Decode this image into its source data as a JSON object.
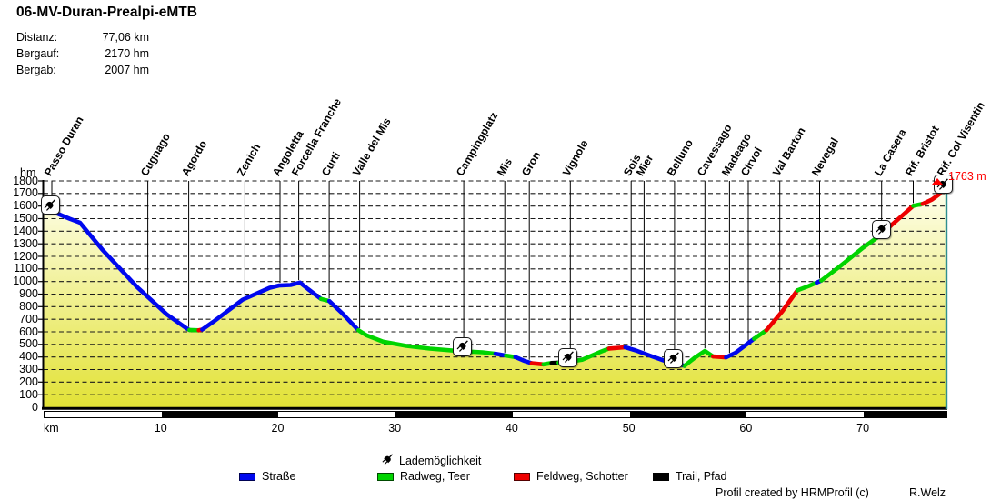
{
  "title": "06-MV-Duran-Prealpi-eMTB",
  "stats": [
    {
      "label": "Distanz:",
      "value": "77,06 km"
    },
    {
      "label": "Bergauf:",
      "value": "2170 hm"
    },
    {
      "label": "Bergab:",
      "value": "2007 hm"
    }
  ],
  "axes": {
    "y_unit": "hm",
    "x_unit": "km",
    "y_min": 0,
    "y_max": 1800,
    "y_step": 100,
    "x_max": 77.06,
    "x_ticks": [
      10,
      20,
      30,
      40,
      50,
      60,
      70
    ]
  },
  "peak": {
    "label": "1763 m",
    "elevation_m": 1763,
    "km": 77.06
  },
  "colors": {
    "road": "#0008ee",
    "bike": "#00d400",
    "gravel": "#ee0000",
    "trail": "#000000",
    "fill_top": "#fffff2",
    "fill_bottom": "#e2e236",
    "grid": "#1a1a1a",
    "right_border": "#2f8f8f",
    "peak": "#ff0000",
    "bar_light": "#ffffff",
    "bar_dark": "#000000"
  },
  "chargers": {
    "legend_label": "Lademöglichkeit",
    "positions_km": [
      0.55,
      35.8,
      44.8,
      53.8,
      71.6,
      76.85
    ]
  },
  "legend": [
    {
      "surface": "road",
      "label": "Straße"
    },
    {
      "surface": "bike",
      "label": "Radweg, Teer"
    },
    {
      "surface": "gravel",
      "label": "Feldweg, Schotter"
    },
    {
      "surface": "trail",
      "label": "Trail, Pfad"
    }
  ],
  "footer": {
    "credit": "Profil created by HRMProfil (c)",
    "author": "R.Welz"
  },
  "chart_data": {
    "type": "area",
    "title": "06-MV-Duran-Prealpi-eMTB",
    "xlabel": "km",
    "ylabel": "hm",
    "xlim": [
      0,
      77.06
    ],
    "ylim": [
      0,
      1800
    ],
    "y_step": 100,
    "x_ticks": [
      10,
      20,
      30,
      40,
      50,
      60,
      70
    ],
    "grid": true,
    "surfaces": {
      "road": "Straße",
      "bike": "Radweg, Teer",
      "gravel": "Feldweg, Schotter",
      "trail": "Trail, Pfad"
    },
    "profile_points_km_m_surface": [
      [
        0,
        1600,
        null
      ],
      [
        0.8,
        1555,
        "road"
      ],
      [
        2.2,
        1500,
        "road"
      ],
      [
        3.1,
        1468,
        "road"
      ],
      [
        5,
        1255,
        "road"
      ],
      [
        8,
        955,
        "road"
      ],
      [
        10.5,
        740,
        "road"
      ],
      [
        12.2,
        628,
        "road"
      ],
      [
        12.45,
        615,
        "road"
      ],
      [
        13.25,
        612,
        "bike"
      ],
      [
        13.55,
        618,
        "gravel"
      ],
      [
        14.5,
        680,
        "road"
      ],
      [
        17,
        855,
        "road"
      ],
      [
        19.3,
        950,
        "road"
      ],
      [
        20.1,
        968,
        "road"
      ],
      [
        21.1,
        972,
        "road"
      ],
      [
        21.9,
        992,
        "road"
      ],
      [
        22.6,
        940,
        "road"
      ],
      [
        23.7,
        862,
        "road"
      ],
      [
        24.4,
        845,
        "bike"
      ],
      [
        25.5,
        748,
        "road"
      ],
      [
        26.9,
        612,
        "road"
      ],
      [
        27.6,
        572,
        "bike"
      ],
      [
        29,
        522,
        "bike"
      ],
      [
        31,
        488,
        "bike"
      ],
      [
        33,
        466,
        "bike"
      ],
      [
        35.5,
        447,
        "bike"
      ],
      [
        37.5,
        437,
        "bike"
      ],
      [
        38.6,
        426,
        "bike"
      ],
      [
        39.5,
        411,
        "road"
      ],
      [
        40.3,
        399,
        "bike"
      ],
      [
        41.1,
        368,
        "road"
      ],
      [
        41.7,
        350,
        "road"
      ],
      [
        42.7,
        341,
        "gravel"
      ],
      [
        43.4,
        352,
        "bike"
      ],
      [
        44,
        355,
        "trail"
      ],
      [
        44.6,
        357,
        "bike"
      ],
      [
        46,
        378,
        "bike"
      ],
      [
        47.6,
        442,
        "bike"
      ],
      [
        48.3,
        467,
        "bike"
      ],
      [
        49.7,
        477,
        "gravel"
      ],
      [
        50.6,
        452,
        "road"
      ],
      [
        52,
        404,
        "road"
      ],
      [
        53.2,
        364,
        "road"
      ],
      [
        54.2,
        347,
        "bike"
      ],
      [
        54.75,
        329,
        "road"
      ],
      [
        55.6,
        392,
        "bike"
      ],
      [
        56.5,
        448,
        "bike"
      ],
      [
        57.2,
        404,
        "bike"
      ],
      [
        58.3,
        397,
        "gravel"
      ],
      [
        59.1,
        432,
        "road"
      ],
      [
        60.7,
        545,
        "road"
      ],
      [
        61.75,
        612,
        "bike"
      ],
      [
        63.1,
        762,
        "gravel"
      ],
      [
        64.4,
        930,
        "gravel"
      ],
      [
        65.4,
        965,
        "bike"
      ],
      [
        66.05,
        992,
        "bike"
      ],
      [
        66.45,
        1008,
        "road"
      ],
      [
        68,
        1118,
        "bike"
      ],
      [
        70,
        1268,
        "bike"
      ],
      [
        71.4,
        1362,
        "bike"
      ],
      [
        71.8,
        1395,
        "bike"
      ],
      [
        72.6,
        1462,
        "gravel"
      ],
      [
        74.3,
        1602,
        "gravel"
      ],
      [
        75.1,
        1617,
        "bike"
      ],
      [
        75.9,
        1652,
        "gravel"
      ],
      [
        76.5,
        1692,
        "gravel"
      ],
      [
        77.06,
        1763,
        "gravel"
      ]
    ],
    "places": [
      {
        "name": "Passo Duran",
        "km": 0.7
      },
      {
        "name": "Cugnago",
        "km": 8.9
      },
      {
        "name": "Agordo",
        "km": 12.4
      },
      {
        "name": "Zenich",
        "km": 17.2
      },
      {
        "name": "Angoletta",
        "km": 20.2
      },
      {
        "name": "Forcella Franche",
        "km": 21.8
      },
      {
        "name": "Curti",
        "km": 24.4
      },
      {
        "name": "Valle del Mis",
        "km": 27.0
      },
      {
        "name": "Campingplatz",
        "km": 35.9
      },
      {
        "name": "Mis",
        "km": 39.4
      },
      {
        "name": "Gron",
        "km": 41.5
      },
      {
        "name": "Vignole",
        "km": 45.0
      },
      {
        "name": "Sois",
        "km": 50.2
      },
      {
        "name": "Mier",
        "km": 51.3
      },
      {
        "name": "Belluno",
        "km": 53.9
      },
      {
        "name": "Cavessago",
        "km": 56.5
      },
      {
        "name": "Madeago",
        "km": 58.6
      },
      {
        "name": "Cirvoi",
        "km": 60.2
      },
      {
        "name": "Val Barton",
        "km": 62.9
      },
      {
        "name": "Nevegal",
        "km": 66.3
      },
      {
        "name": "La Casera",
        "km": 71.6
      },
      {
        "name": "Rif. Bristot",
        "km": 74.3
      },
      {
        "name": "Rif. Col Visentin",
        "km": 77.0
      }
    ],
    "charging_stations_km": [
      0.55,
      35.8,
      44.8,
      53.8,
      71.6,
      76.85
    ],
    "distance_bar_alternation_km": 10
  }
}
